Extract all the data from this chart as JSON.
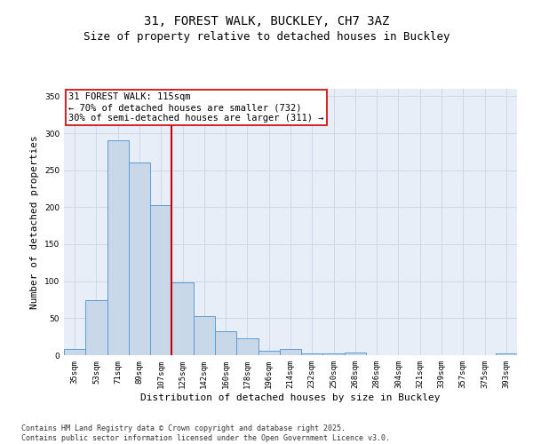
{
  "title_line1": "31, FOREST WALK, BUCKLEY, CH7 3AZ",
  "title_line2": "Size of property relative to detached houses in Buckley",
  "xlabel": "Distribution of detached houses by size in Buckley",
  "ylabel": "Number of detached properties",
  "categories": [
    "35sqm",
    "53sqm",
    "71sqm",
    "89sqm",
    "107sqm",
    "125sqm",
    "142sqm",
    "160sqm",
    "178sqm",
    "196sqm",
    "214sqm",
    "232sqm",
    "250sqm",
    "268sqm",
    "286sqm",
    "304sqm",
    "321sqm",
    "339sqm",
    "357sqm",
    "375sqm",
    "393sqm"
  ],
  "values": [
    8,
    75,
    290,
    260,
    203,
    98,
    53,
    32,
    23,
    6,
    8,
    3,
    3,
    4,
    0,
    0,
    0,
    0,
    0,
    0,
    2
  ],
  "bar_color": "#c8d8e8",
  "bar_edge_color": "#5b9bd5",
  "vline_x": 4.5,
  "vline_color": "#cc0000",
  "annotation_text": "31 FOREST WALK: 115sqm\n← 70% of detached houses are smaller (732)\n30% of semi-detached houses are larger (311) →",
  "annotation_box_color": "#ffffff",
  "annotation_box_edge_color": "#cc0000",
  "ylim": [
    0,
    360
  ],
  "yticks": [
    0,
    50,
    100,
    150,
    200,
    250,
    300,
    350
  ],
  "grid_color": "#d0d8e8",
  "background_color": "#e8eef8",
  "footer_text": "Contains HM Land Registry data © Crown copyright and database right 2025.\nContains public sector information licensed under the Open Government Licence v3.0.",
  "title_fontsize": 10,
  "subtitle_fontsize": 9,
  "tick_fontsize": 6.5,
  "axis_label_fontsize": 8,
  "annotation_fontsize": 7.5,
  "footer_fontsize": 6
}
